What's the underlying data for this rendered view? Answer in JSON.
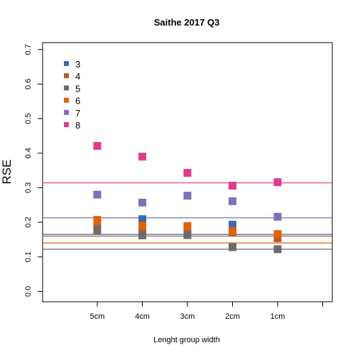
{
  "chart_data": {
    "type": "scatter",
    "title": "Saithe 2017 Q3",
    "xlabel": "Lenght group width",
    "ylabel": "RSE",
    "categories": [
      "5cm",
      "4cm",
      "3cm",
      "2cm",
      "1cm"
    ],
    "ylim": [
      -0.03,
      0.72
    ],
    "yticks": [
      "0.0",
      "0.1",
      "0.2",
      "0.3",
      "0.4",
      "0.5",
      "0.6",
      "0.7"
    ],
    "legend_position": "top-left",
    "grid": false,
    "series": [
      {
        "name": "3",
        "color": "#3a6ab0",
        "values": [
          0.184,
          0.209,
          0.182,
          0.193,
          0.16
        ],
        "hline": 0.165
      },
      {
        "name": "4",
        "color": "#b85a28",
        "values": [
          0.183,
          0.184,
          0.18,
          0.17,
          0.154
        ],
        "hline": 0.16
      },
      {
        "name": "5",
        "color": "#6b6b6b",
        "values": [
          0.176,
          0.162,
          0.163,
          0.128,
          0.122
        ],
        "hline": 0.122
      },
      {
        "name": "6",
        "color": "#e0620a",
        "values": [
          0.207,
          0.19,
          0.189,
          0.175,
          0.166
        ],
        "hline": 0.14
      },
      {
        "name": "7",
        "color": "#7a73b8",
        "values": [
          0.28,
          0.257,
          0.277,
          0.261,
          0.216
        ],
        "hline": 0.213
      },
      {
        "name": "8",
        "color": "#e03c8c",
        "values": [
          0.421,
          0.39,
          0.343,
          0.306,
          0.316
        ],
        "hline": 0.314
      }
    ]
  }
}
